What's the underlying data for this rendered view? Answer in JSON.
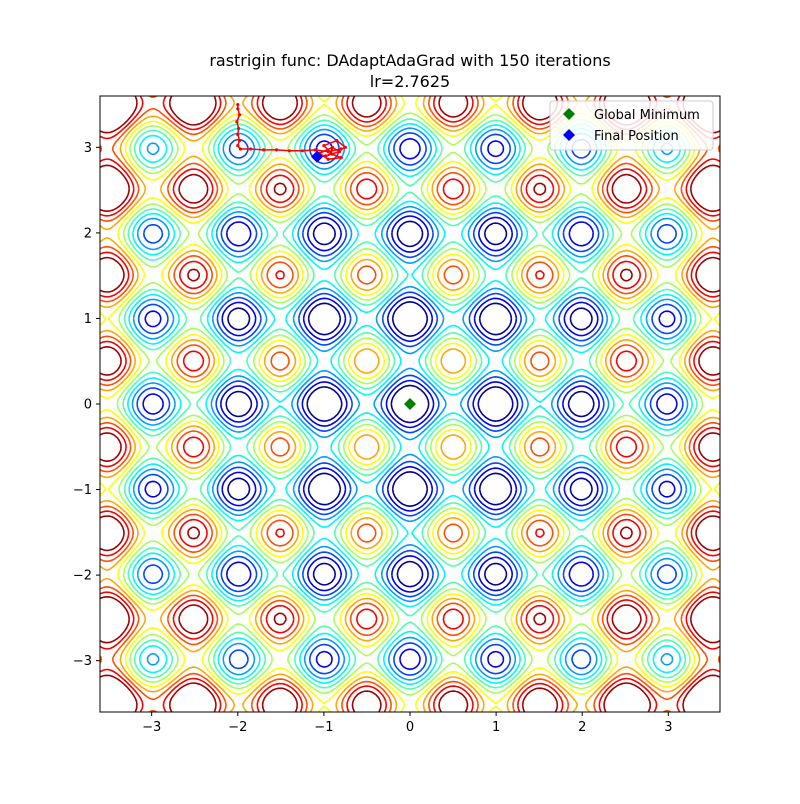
{
  "chart_data": {
    "type": "contour",
    "title_line1": "rastrigin func: DAdaptAdaGrad with 150 iterations",
    "title_line2": "lr=2.7625",
    "xlabel": "",
    "ylabel": "",
    "xlim": [
      -3.6,
      3.6
    ],
    "ylim": [
      -3.6,
      3.6
    ],
    "x_ticks": [
      -3,
      -2,
      -1,
      0,
      1,
      2,
      3
    ],
    "y_ticks": [
      -3,
      -2,
      -1,
      0,
      1,
      2,
      3
    ],
    "x_tick_labels": [
      "−3",
      "−2",
      "−1",
      "0",
      "1",
      "2",
      "3"
    ],
    "y_tick_labels": [
      "−3",
      "−2",
      "−1",
      "0",
      "1",
      "2",
      "3"
    ],
    "grid": false,
    "function": "rastrigin",
    "colormap": "jet",
    "legend": {
      "placement": "top-right",
      "entries": [
        {
          "label": "Global Minimum",
          "color": "#008000",
          "marker": "diamond"
        },
        {
          "label": "Final Position",
          "color": "#0000ff",
          "marker": "diamond"
        }
      ]
    },
    "global_minimum": {
      "x": 0.0,
      "y": 0.0
    },
    "final_position": {
      "x": -1.08,
      "y": 2.89
    },
    "path_color": "#ff0000",
    "path": [
      [
        -2.0,
        3.5
      ],
      [
        -2.0,
        3.45
      ],
      [
        -1.98,
        3.38
      ],
      [
        -2.01,
        3.3
      ],
      [
        -1.99,
        3.22
      ],
      [
        -2.0,
        3.15
      ],
      [
        -1.98,
        3.08
      ],
      [
        -2.0,
        3.02
      ],
      [
        -1.97,
        2.98
      ],
      [
        -1.85,
        2.98
      ],
      [
        -1.7,
        2.97
      ],
      [
        -1.55,
        2.97
      ],
      [
        -1.4,
        2.96
      ],
      [
        -1.25,
        2.96
      ],
      [
        -1.1,
        2.97
      ],
      [
        -0.95,
        2.95
      ],
      [
        -0.8,
        2.98
      ],
      [
        -0.75,
        3.0
      ],
      [
        -0.85,
        3.08
      ],
      [
        -1.0,
        3.02
      ],
      [
        -0.9,
        2.92
      ],
      [
        -0.8,
        2.88
      ],
      [
        -0.95,
        2.86
      ],
      [
        -1.05,
        2.93
      ],
      [
        -0.9,
        3.0
      ],
      [
        -0.82,
        2.95
      ],
      [
        -0.98,
        2.9
      ],
      [
        -1.08,
        2.89
      ]
    ]
  }
}
